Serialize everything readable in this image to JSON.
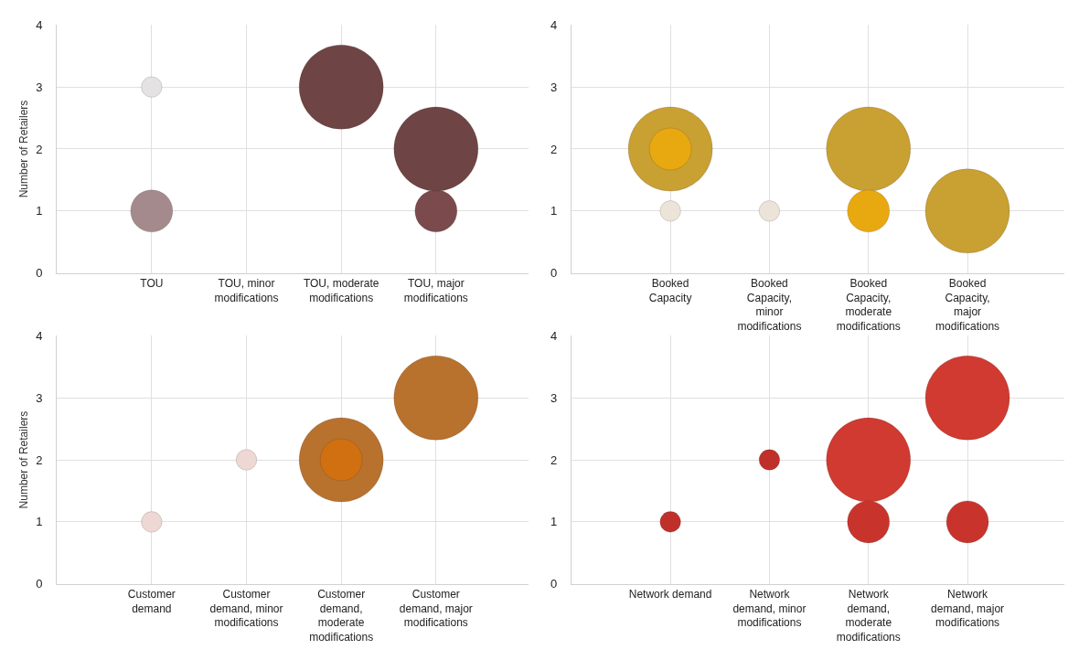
{
  "chart_data": [
    {
      "type": "bubble",
      "ylabel": "Number of Retailers",
      "categories": [
        "TOU",
        "TOU, minor modifications",
        "TOU, moderate modifications",
        "TOU, major modifications"
      ],
      "ylim": [
        0,
        4
      ],
      "yticks": [
        0,
        1,
        2,
        3,
        4
      ],
      "grid": true,
      "series": [
        {
          "values": [
            3,
            null,
            null,
            null
          ],
          "sizes": [
            0.06,
            null,
            null,
            null
          ],
          "colors": [
            "#e4e2e2",
            null,
            null,
            null
          ]
        },
        {
          "values": [
            1,
            null,
            null,
            1
          ],
          "sizes": [
            0.25,
            null,
            null,
            0.25
          ],
          "colors": [
            "#a48a8c",
            null,
            null,
            "#7a4a4c"
          ]
        },
        {
          "values": [
            null,
            null,
            3,
            2
          ],
          "sizes": [
            null,
            null,
            1,
            1
          ],
          "colors": [
            null,
            null,
            "#6e4444",
            "#6e4444"
          ]
        }
      ]
    },
    {
      "type": "bubble",
      "categories": [
        "Booked Capacity",
        "Booked Capacity, minor modifications",
        "Booked Capacity, moderate modifications",
        "Booked Capacity, major modifications"
      ],
      "ylim": [
        0,
        4
      ],
      "yticks": [
        0,
        1,
        2,
        3,
        4
      ],
      "grid": true,
      "series": [
        {
          "values": [
            2,
            null,
            2,
            1
          ],
          "sizes": [
            1,
            null,
            1,
            1
          ],
          "colors": [
            "#c9a032",
            null,
            "#c9a032",
            "#c9a032"
          ]
        },
        {
          "values": [
            2,
            null,
            1,
            null
          ],
          "sizes": [
            0.25,
            null,
            0.25,
            null
          ],
          "colors": [
            "#e8a810",
            null,
            "#e8a810",
            null
          ]
        },
        {
          "values": [
            1,
            1,
            null,
            null
          ],
          "sizes": [
            0.06,
            0.06,
            null,
            null
          ],
          "colors": [
            "#ece4d8",
            "#ece4d8",
            null,
            null
          ]
        }
      ]
    },
    {
      "type": "bubble",
      "ylabel": "Number of Retailers",
      "categories": [
        "Customer demand",
        "Customer demand, minor modifications",
        "Customer demand, moderate modifications",
        "Customer demand, major modifications"
      ],
      "ylim": [
        0,
        4
      ],
      "yticks": [
        0,
        1,
        2,
        3,
        4
      ],
      "grid": true,
      "series": [
        {
          "values": [
            1,
            2,
            null,
            null
          ],
          "sizes": [
            0.06,
            0.06,
            null,
            null
          ],
          "colors": [
            "#eed8d4",
            "#eed8d4",
            null,
            null
          ]
        },
        {
          "values": [
            null,
            null,
            2,
            3
          ],
          "sizes": [
            null,
            null,
            1,
            1
          ],
          "colors": [
            null,
            null,
            "#b8722e",
            "#b8722e"
          ]
        },
        {
          "values": [
            null,
            null,
            2,
            null
          ],
          "sizes": [
            null,
            null,
            0.25,
            null
          ],
          "colors": [
            null,
            null,
            "#d07010",
            null
          ]
        }
      ]
    },
    {
      "type": "bubble",
      "categories": [
        "Network demand",
        "Network demand, minor modifications",
        "Network demand, moderate modifications",
        "Network demand, major modifications"
      ],
      "ylim": [
        0,
        4
      ],
      "yticks": [
        0,
        1,
        2,
        3,
        4
      ],
      "grid": true,
      "series": [
        {
          "values": [
            1,
            2,
            null,
            null
          ],
          "sizes": [
            0.06,
            0.06,
            null,
            null
          ],
          "colors": [
            "#c0302a",
            "#c0302a",
            null,
            null
          ]
        },
        {
          "values": [
            null,
            null,
            2,
            3
          ],
          "sizes": [
            null,
            null,
            1,
            1
          ],
          "colors": [
            null,
            null,
            "#d03a30",
            "#d03a30"
          ]
        },
        {
          "values": [
            null,
            null,
            1,
            1
          ],
          "sizes": [
            null,
            null,
            0.25,
            0.25
          ],
          "colors": [
            null,
            null,
            "#c8342c",
            "#c8342c"
          ]
        }
      ]
    }
  ]
}
